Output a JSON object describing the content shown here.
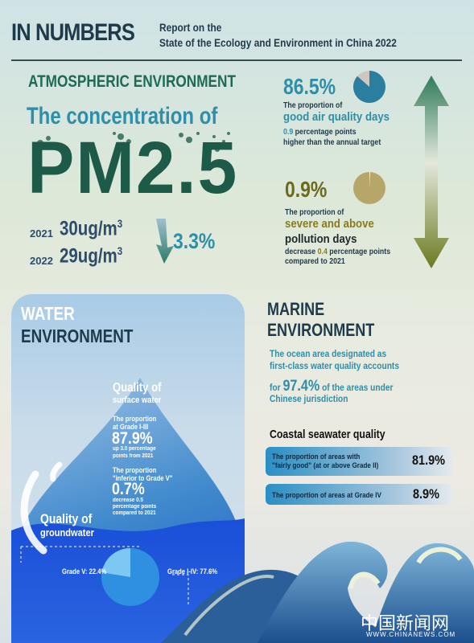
{
  "header": {
    "title": "IN NUMBERS",
    "subtitle_line1": "Report on the",
    "subtitle_line2": "State of the Ecology and Environment in China 2022"
  },
  "atmospheric": {
    "title": "ATMOSPHERIC ENVIRONMENT",
    "concentration_label": "The concentration of",
    "pollutant": "PM2.5",
    "year_2021": "2021",
    "value_2021": "30ug/m",
    "year_2022": "2022",
    "value_2022": "29ug/m",
    "unit_superscript": "3",
    "change": "3.3%",
    "good_days": {
      "value": "86.5%",
      "pie_fraction": 0.865,
      "label_line1": "The proportion of",
      "label_line2": "good air quality days",
      "note_num": "0.9",
      "note_rest": " percentage points",
      "note_line2": "higher than the annual target"
    },
    "severe_days": {
      "value": "0.9%",
      "pie_fraction": 0.009,
      "label_line1": "The proportion of",
      "label_line2": "severe and above",
      "label_line3": "pollution days",
      "note_pre": "decrease ",
      "note_num": "0.4",
      "note_rest": " percentage points",
      "note_line2": "compared to 2021"
    }
  },
  "water": {
    "title_line1": "WATER",
    "title_line2": "ENVIRONMENT",
    "surface_line1": "Quality of",
    "surface_line2": "surface water",
    "grade_i_iii_label1": "The proportion",
    "grade_i_iii_label2": "at Grade I-III",
    "grade_i_iii_value": "87.9%",
    "grade_i_iii_note1": "up 3.0 percentage",
    "grade_i_iii_note2": "points from 2021",
    "inferior_label1": "The proportion",
    "inferior_label2": "\"inferior to Grade V\"",
    "inferior_value": "0.7%",
    "inferior_note1": "decrease 0.5",
    "inferior_note2": "percentage points",
    "inferior_note3": "compared to 2021",
    "groundwater_line1": "Quality of",
    "groundwater_line2": "groundwater",
    "groundwater_pie": [
      {
        "label": "Grade V: 22.4%",
        "value": 22.4
      },
      {
        "label": "Grade I-IV: 77.6%",
        "value": 77.6
      }
    ]
  },
  "marine": {
    "title_line1": "MARINE",
    "title_line2": "ENVIRONMENT",
    "text_line1": "The ocean area designated as",
    "text_line2": "first-class water quality accounts",
    "text_for": "for ",
    "text_value": "97.4%",
    "text_rest": " of the areas under",
    "text_line4": "Chinese jurisdiction",
    "coastal_title": "Coastal seawater quality",
    "bar1_line1": "The proportion of areas with",
    "bar1_line2": "\"fairly good\" (at or above Grade II)",
    "bar1_value": "81.9%",
    "bar2_label": "The proportion of areas at Grade IV",
    "bar2_value": "8.9%"
  },
  "footer": {
    "logo_text": "中国新闻网",
    "site": "WWW.CHINANEWS.COM"
  },
  "colors": {
    "dark_navy": "#1f3a4a",
    "teal_blue": "#2f8ea8",
    "dark_green": "#1e5a48",
    "olive": "#8a7a1e",
    "water_blue": "#1f5fd6"
  }
}
